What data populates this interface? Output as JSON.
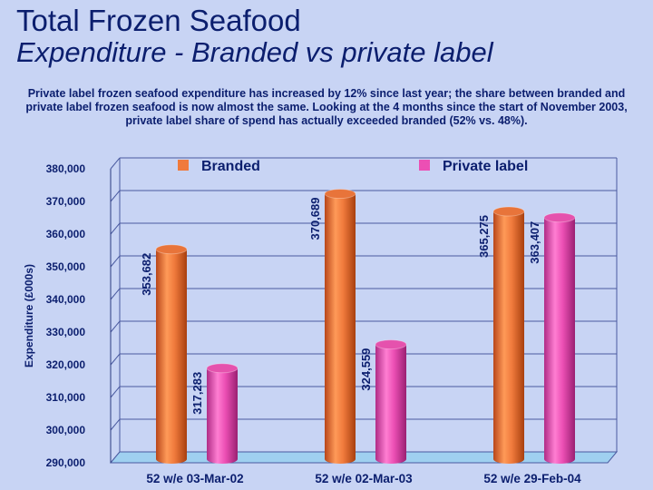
{
  "header": {
    "title": "Total Frozen Seafood",
    "subtitle": "Expenditure - Branded vs private label",
    "description": "Private label frozen seafood expenditure has increased by 12% since last year; the share between branded and private label frozen seafood is now almost the same. Looking at the 4 months since the start of November 2003, private label share of spend has actually exceeded branded (52% vs. 48%)."
  },
  "chart_data": {
    "type": "bar",
    "title": "",
    "xlabel": "",
    "ylabel": "Expenditure (£000s)",
    "ylim": [
      290000,
      380000
    ],
    "yticks": [
      290000,
      300000,
      310000,
      320000,
      330000,
      340000,
      350000,
      360000,
      370000,
      380000
    ],
    "ytick_labels": [
      "290,000",
      "300,000",
      "310,000",
      "320,000",
      "330,000",
      "340,000",
      "350,000",
      "360,000",
      "370,000",
      "380,000"
    ],
    "categories": [
      "52 w/e 03-Mar-02",
      "52 w/e 02-Mar-03",
      "52 w/e 29-Feb-04"
    ],
    "series": [
      {
        "name": "Branded",
        "values": [
          353682,
          370689,
          365275
        ],
        "labels": [
          "353,682",
          "370,689",
          "365,275"
        ],
        "color": "#f07a3c"
      },
      {
        "name": "Private label",
        "values": [
          317283,
          324559,
          363407
        ],
        "labels": [
          "317,283",
          "324,559",
          "363,407"
        ],
        "color": "#ec4fb4"
      }
    ],
    "legend": "top",
    "grid": true
  },
  "colors": {
    "text": "#0b1e6e",
    "background": "#c8d4f4",
    "floor": "#9fd0f0"
  }
}
